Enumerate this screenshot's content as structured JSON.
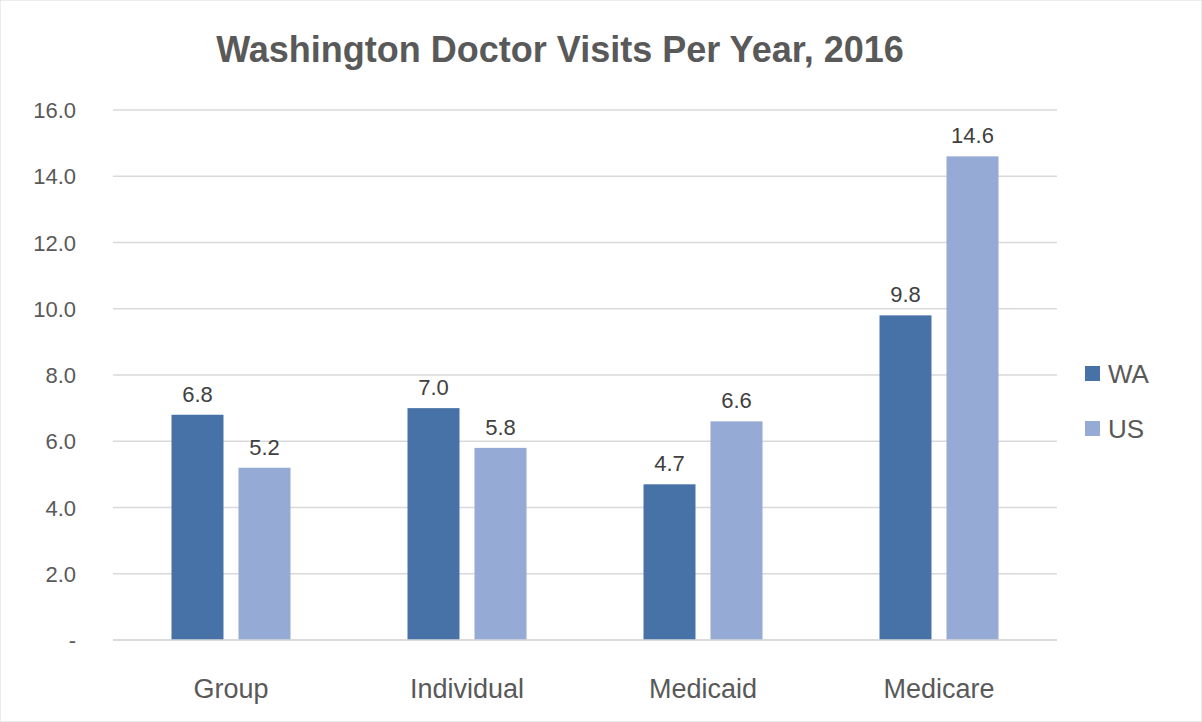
{
  "chart_data": {
    "type": "bar",
    "title": "Washington Doctor Visits Per Year, 2016",
    "categories": [
      "Group",
      "Individual",
      "Medicaid",
      "Medicare"
    ],
    "series": [
      {
        "name": "WA",
        "color": "#4672a8",
        "values": [
          6.8,
          7.0,
          4.7,
          9.8
        ],
        "value_labels": [
          "6.8",
          "7.0",
          "4.7",
          "9.8"
        ]
      },
      {
        "name": "US",
        "color": "#95aad4",
        "values": [
          5.2,
          5.8,
          6.6,
          14.6
        ],
        "value_labels": [
          "5.2",
          "5.8",
          "6.6",
          "14.6"
        ]
      }
    ],
    "ylim": [
      0,
      16
    ],
    "yticks": [
      {
        "value": 0,
        "label": "-"
      },
      {
        "value": 2,
        "label": "2.0"
      },
      {
        "value": 4,
        "label": "4.0"
      },
      {
        "value": 6,
        "label": "6.0"
      },
      {
        "value": 8,
        "label": "8.0"
      },
      {
        "value": 10,
        "label": "10.0"
      },
      {
        "value": 12,
        "label": "12.0"
      },
      {
        "value": 14,
        "label": "14.0"
      },
      {
        "value": 16,
        "label": "16.0"
      }
    ],
    "grid": true,
    "legend": "right",
    "data_labels": true
  }
}
